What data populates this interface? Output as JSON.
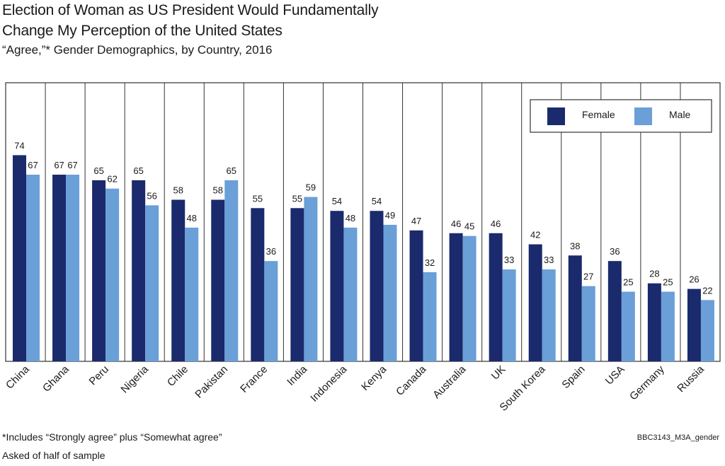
{
  "title_line1": "Election of Woman as US President Would Fundamentally",
  "title_line2": "Change My Perception of the United States",
  "subtitle": "“Agree,”* Gender Demographics, by Country, 2016",
  "footnote1": "*Includes “Strongly agree” plus “Somewhat agree”",
  "footnote2": "Asked of half of sample",
  "code": "BBC3143_M3A_gender",
  "colors": {
    "female": "#1a2a6c",
    "male": "#6a9fd8",
    "border": "#333333"
  },
  "chart_data": {
    "type": "bar",
    "title": "Election of Woman as US President Would Fundamentally Change My Perception of the United States",
    "subtitle": "“Agree,”* Gender Demographics, by Country, 2016",
    "categories": [
      "China",
      "Ghana",
      "Peru",
      "Nigeria",
      "Chile",
      "Pakistan",
      "France",
      "India",
      "Indonesia",
      "Kenya",
      "Canada",
      "Australia",
      "UK",
      "South Korea",
      "Spain",
      "USA",
      "Germany",
      "Russia"
    ],
    "series": [
      {
        "name": "Female",
        "values": [
          74,
          67,
          65,
          65,
          58,
          58,
          55,
          55,
          54,
          54,
          47,
          46,
          46,
          42,
          38,
          36,
          28,
          26
        ]
      },
      {
        "name": "Male",
        "values": [
          67,
          67,
          62,
          56,
          48,
          65,
          36,
          59,
          48,
          49,
          32,
          45,
          33,
          33,
          27,
          25,
          25,
          22
        ]
      }
    ],
    "ylim": [
      0,
      100
    ],
    "grid": false,
    "legend": "top-right",
    "data_labels": true
  }
}
